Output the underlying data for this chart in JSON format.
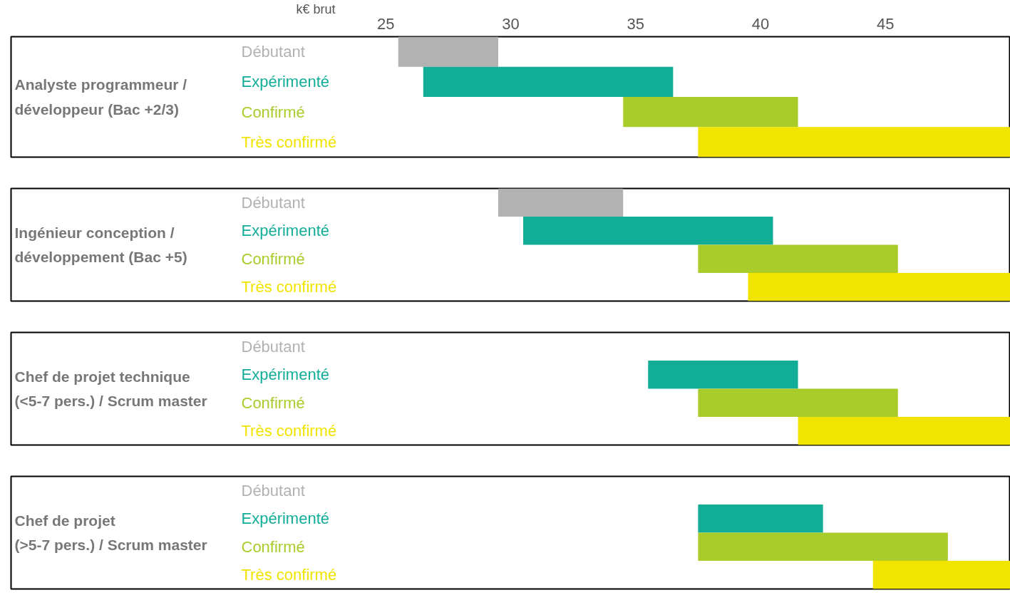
{
  "chart_data": [
    {
      "type": "bar",
      "orientation": "horizontal",
      "ylabel": "Analyste programmeur /\ndéveloppeur (Bac +2/3)",
      "xlabel": "k€ brut",
      "categories": [
        "Débutant",
        "Expérimenté",
        "Confirmé",
        "Très confirmé"
      ],
      "base": [
        25.5,
        26.5,
        34.5,
        37.5
      ],
      "values": [
        4,
        10,
        7,
        12.5
      ],
      "colors": [
        "#b2b2b2",
        "#12ad97",
        "#aacc2a",
        "#f0e400"
      ],
      "xlim": [
        10,
        50
      ],
      "xticks": [
        25,
        30,
        35,
        40,
        45
      ]
    },
    {
      "type": "bar",
      "orientation": "horizontal",
      "ylabel": "Ingénieur conception /\ndéveloppement (Bac +5)",
      "categories": [
        "Débutant",
        "Expérimenté",
        "Confirmé",
        "Très confirmé"
      ],
      "base": [
        29.5,
        30.5,
        37.5,
        39.5
      ],
      "values": [
        5,
        10,
        8,
        10.5
      ],
      "colors": [
        "#b2b2b2",
        "#12ad97",
        "#aacc2a",
        "#f0e400"
      ],
      "xlim": [
        10,
        50
      ],
      "tick_labels": "y"
    },
    {
      "type": "bar",
      "orientation": "horizontal",
      "ylabel": "Chef de projet technique\n(<5-7 pers.) / Scrum master",
      "categories": [
        "Débutant",
        "Expérimenté",
        "Confirmé",
        "Très confirmé"
      ],
      "base": [
        null,
        35.5,
        37.5,
        41.5
      ],
      "values": [
        null,
        6,
        8,
        8.5
      ],
      "colors": [
        "#b2b2b2",
        "#12ad97",
        "#aacc2a",
        "#f0e400"
      ],
      "xlim": [
        10,
        50
      ],
      "tick_labels": "y"
    },
    {
      "type": "bar",
      "orientation": "horizontal",
      "ylabel": "Chef de projet\n(>5-7 pers.) / Scrum master",
      "categories": [
        "Débutant",
        "Expérimenté",
        "Confirmé",
        "Très confirmé"
      ],
      "base": [
        null,
        37.5,
        37.5,
        44.5
      ],
      "values": [
        null,
        5,
        10,
        5.5
      ],
      "colors": [
        "#b2b2b2",
        "#12ad97",
        "#aacc2a",
        "#f0e400"
      ],
      "xlim": [
        10,
        50
      ],
      "tick_labels": "y"
    }
  ]
}
